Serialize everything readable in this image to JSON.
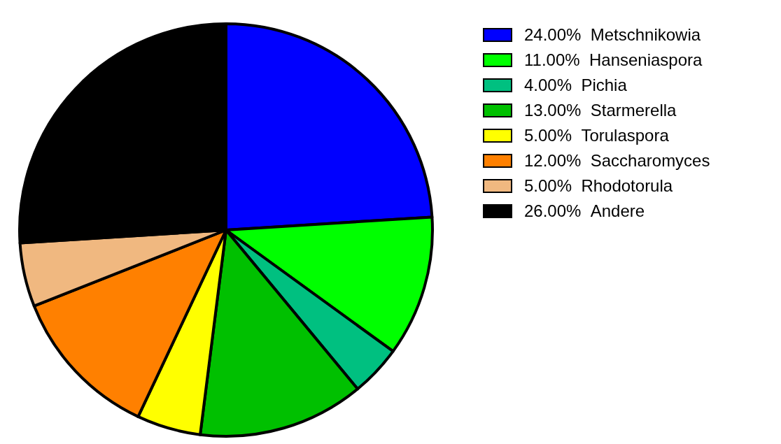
{
  "chart_data": {
    "type": "pie",
    "categories": [
      "Metschnikowia",
      "Hanseniaspora",
      "Pichia",
      "Starmerella",
      "Torulaspora",
      "Saccharomyces",
      "Rhodotorula",
      "Andere"
    ],
    "values": [
      24,
      11,
      4,
      13,
      5,
      12,
      5,
      26
    ],
    "colors": [
      "#0000ff",
      "#00ff00",
      "#00c080",
      "#00c000",
      "#ffff00",
      "#ff8000",
      "#f0b880",
      "#000000"
    ],
    "value_labels": [
      "24.00%",
      "11.00%",
      "4.00%",
      "13.00%",
      "5.00%",
      "12.00%",
      "5.00%",
      "26.00%"
    ],
    "legend": "right"
  }
}
